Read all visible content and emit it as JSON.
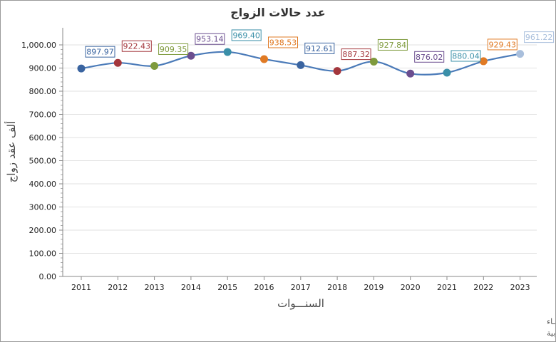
{
  "chart_data": {
    "type": "line",
    "title": "عدد حالات الزواج",
    "xlabel": "السنـــوات",
    "ylabel": "ألف عقد زواج",
    "categories": [
      "2011",
      "2012",
      "2013",
      "2014",
      "2015",
      "2016",
      "2017",
      "2018",
      "2019",
      "2020",
      "2021",
      "2022",
      "2023"
    ],
    "series": [
      {
        "values": [
          897.97,
          922.43,
          909.35,
          953.14,
          969.4,
          938.53,
          912.61,
          887.32,
          927.84,
          876.02,
          880.04,
          929.43,
          961.22
        ]
      }
    ],
    "data_labels": [
      "897.97",
      "922.43",
      "909.35",
      "953.14",
      "969.40",
      "938.53",
      "912.61",
      "887.32",
      "927.84",
      "876.02",
      "880.04",
      "929.43",
      "961.22"
    ],
    "point_colors": [
      "#3a64a0",
      "#a3363c",
      "#7e9a3c",
      "#6b4e8f",
      "#3a8fa8",
      "#e07a24",
      "#3a64a0",
      "#a3363c",
      "#7e9a3c",
      "#6b4e8f",
      "#3a8fa8",
      "#e07a24",
      "#a9bfdc"
    ],
    "line_color": "#4a7ab8",
    "ylim": [
      0,
      1000
    ],
    "y_ticks": [
      "0.00",
      "100.00",
      "200.00",
      "300.00",
      "400.00",
      "500.00",
      "600.00",
      "700.00",
      "800.00",
      "900.00",
      "1,000.00"
    ],
    "grid": true,
    "legend": "none"
  },
  "footer": {
    "line1": "حقوق الملكية للجهـــاز المركزي للتعبئة العــامة والأحصـــاء",
    "line2": "المصدر الأساسي للأحصاءات الرسمية لجمهورية مصر العربية"
  }
}
